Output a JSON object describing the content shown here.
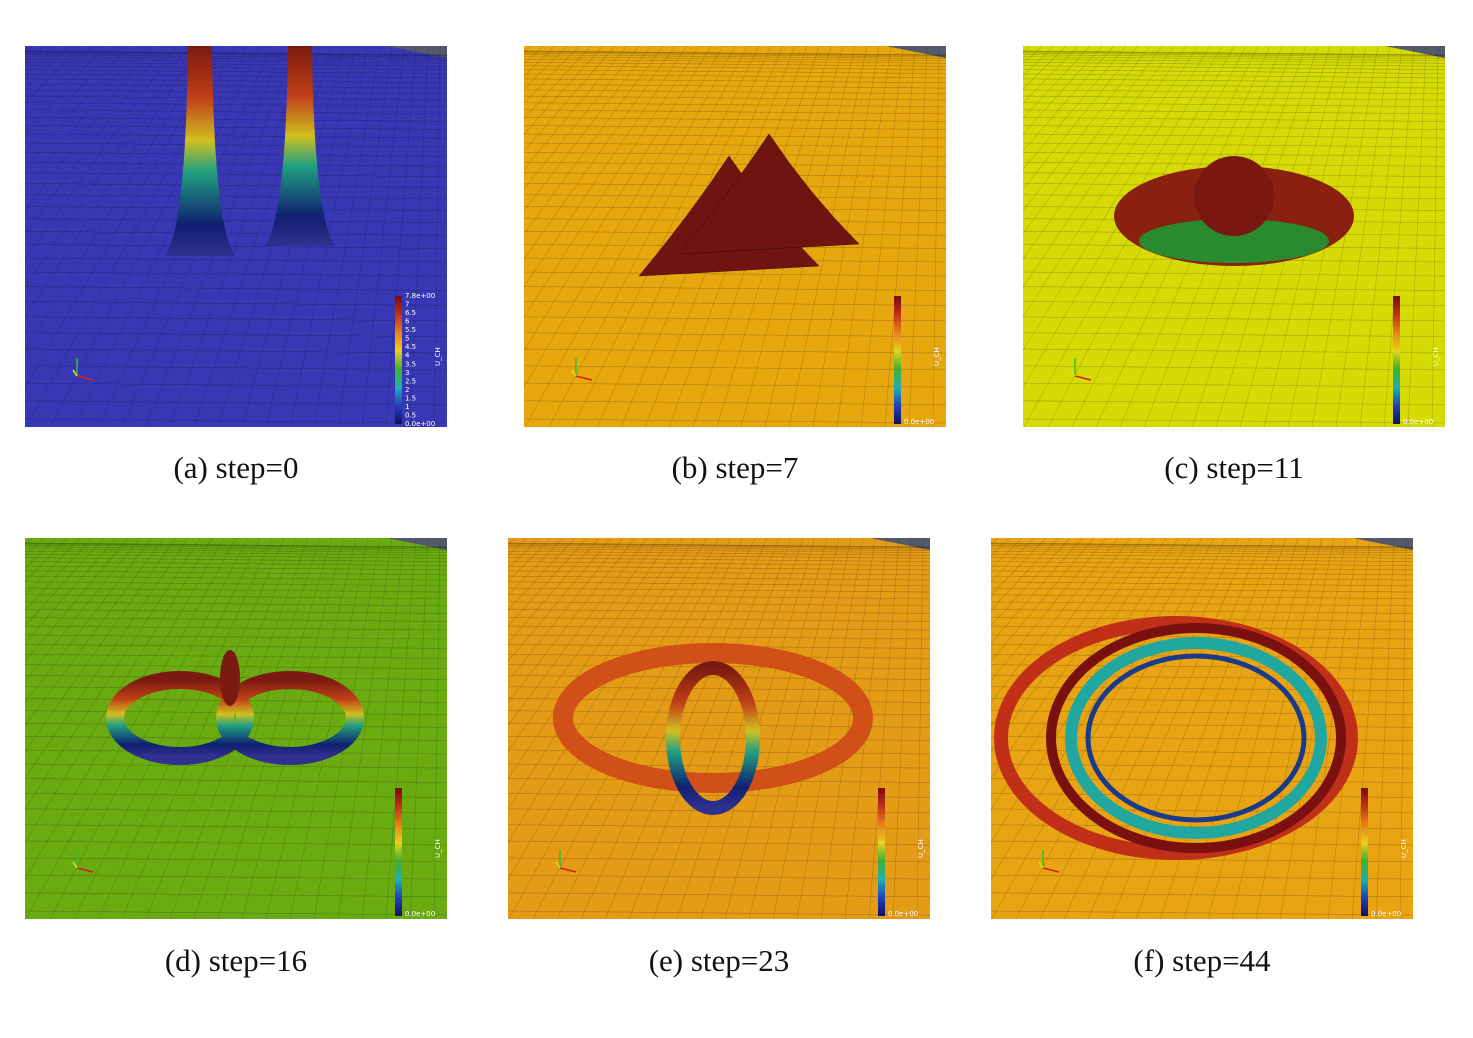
{
  "panels": [
    {
      "caption": "(a) step=0",
      "colorbar": {
        "title": "U_CH",
        "labels": [
          "7.8e+00",
          "7",
          "6.5",
          "6",
          "5.5",
          "5",
          "4.5",
          "4",
          "3.5",
          "3",
          "2.5",
          "2",
          "1.5",
          "1",
          "0.5",
          "0.0e+00"
        ]
      }
    },
    {
      "caption": "(b) step=7",
      "colorbar": {
        "title": "U_CH",
        "labels": [
          "0.0e+00"
        ]
      }
    },
    {
      "caption": "(c) step=11",
      "colorbar": {
        "title": "U_CH",
        "labels": [
          "0.0e+00"
        ]
      }
    },
    {
      "caption": "(d) step=16",
      "colorbar": {
        "title": "U_CH",
        "labels": [
          "0.0e+00"
        ]
      }
    },
    {
      "caption": "(e) step=23",
      "colorbar": {
        "title": "U_CH",
        "labels": [
          "0.0e+00"
        ]
      }
    },
    {
      "caption": "(f) step=44",
      "colorbar": {
        "title": "U_CH",
        "labels": [
          "0.0e+00"
        ]
      }
    }
  ]
}
